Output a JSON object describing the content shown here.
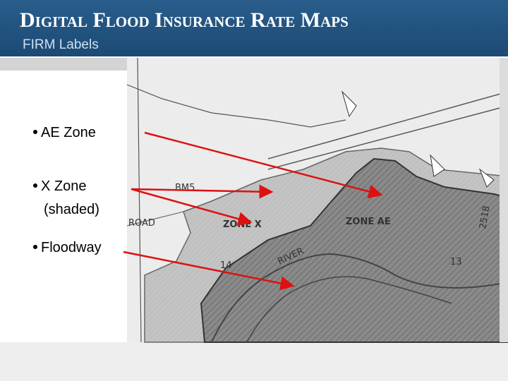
{
  "header": {
    "title": "Digital Flood Insurance Rate Maps",
    "subtitle": "FIRM Labels"
  },
  "bullets": [
    {
      "lines": [
        "AE Zone"
      ]
    },
    {
      "lines": [
        "X Zone",
        "(shaded)"
      ]
    },
    {
      "lines": [
        "Floodway"
      ]
    }
  ],
  "map_labels": [
    "BM5",
    "ZONE X",
    "ZONE AE",
    "14",
    "13",
    "RIVER",
    "ROAD",
    "2518"
  ]
}
